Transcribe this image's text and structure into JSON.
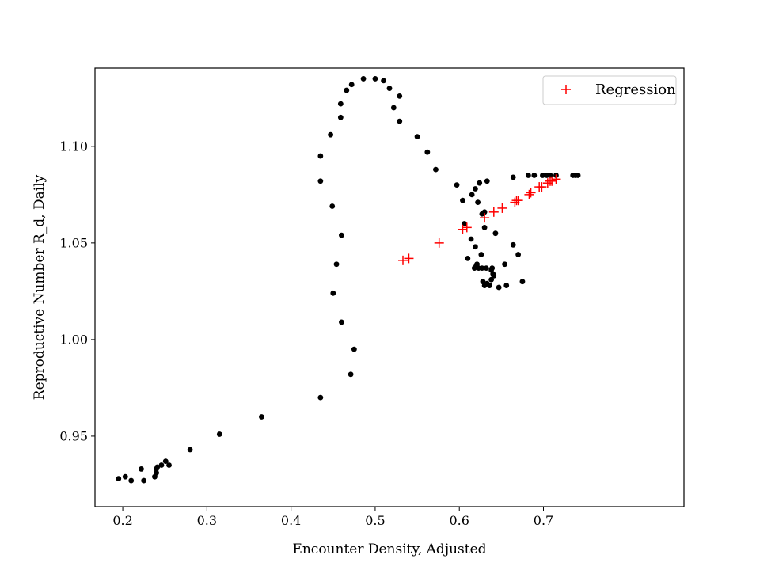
{
  "chart_data": {
    "type": "scatter",
    "title": "",
    "xlabel": "Encounter Density, Adjusted",
    "ylabel": "Reproductive Number R_d, Daily",
    "xlim": [
      0.167,
      0.867
    ],
    "ylim": [
      0.9135,
      1.1405
    ],
    "xticks": [
      0.2,
      0.3,
      0.4,
      0.5,
      0.6,
      0.7
    ],
    "xtick_labels": [
      "0.2",
      "0.3",
      "0.4",
      "0.5",
      "0.6",
      "0.7"
    ],
    "yticks": [
      0.95,
      1.0,
      1.05,
      1.1
    ],
    "ytick_labels": [
      "0.95",
      "1.00",
      "1.05",
      "1.10"
    ],
    "grid": false,
    "legend_position": "top-right",
    "series": [
      {
        "name": "",
        "marker": "dot",
        "color": "#000000",
        "points": [
          [
            0.195,
            0.928
          ],
          [
            0.203,
            0.929
          ],
          [
            0.21,
            0.927
          ],
          [
            0.222,
            0.933
          ],
          [
            0.225,
            0.927
          ],
          [
            0.238,
            0.929
          ],
          [
            0.24,
            0.931
          ],
          [
            0.24,
            0.933
          ],
          [
            0.241,
            0.934
          ],
          [
            0.246,
            0.935
          ],
          [
            0.251,
            0.937
          ],
          [
            0.255,
            0.935
          ],
          [
            0.28,
            0.943
          ],
          [
            0.315,
            0.951
          ],
          [
            0.365,
            0.96
          ],
          [
            0.435,
            0.97
          ],
          [
            0.471,
            0.982
          ],
          [
            0.475,
            0.995
          ],
          [
            0.46,
            1.009
          ],
          [
            0.45,
            1.024
          ],
          [
            0.454,
            1.039
          ],
          [
            0.46,
            1.054
          ],
          [
            0.449,
            1.069
          ],
          [
            0.435,
            1.082
          ],
          [
            0.435,
            1.095
          ],
          [
            0.447,
            1.106
          ],
          [
            0.459,
            1.115
          ],
          [
            0.459,
            1.122
          ],
          [
            0.466,
            1.129
          ],
          [
            0.472,
            1.132
          ],
          [
            0.486,
            1.135
          ],
          [
            0.5,
            1.135
          ],
          [
            0.51,
            1.134
          ],
          [
            0.517,
            1.13
          ],
          [
            0.529,
            1.126
          ],
          [
            0.522,
            1.12
          ],
          [
            0.529,
            1.113
          ],
          [
            0.55,
            1.105
          ],
          [
            0.562,
            1.097
          ],
          [
            0.572,
            1.088
          ],
          [
            0.597,
            1.08
          ],
          [
            0.604,
            1.072
          ],
          [
            0.606,
            1.06
          ],
          [
            0.61,
            1.042
          ],
          [
            0.614,
            1.052
          ],
          [
            0.615,
            1.075
          ],
          [
            0.619,
            1.078
          ],
          [
            0.619,
            1.048
          ],
          [
            0.622,
            1.071
          ],
          [
            0.624,
            1.081
          ],
          [
            0.626,
            1.044
          ],
          [
            0.627,
            1.065
          ],
          [
            0.63,
            1.066
          ],
          [
            0.63,
            1.058
          ],
          [
            0.633,
            1.082
          ],
          [
            0.618,
            1.037
          ],
          [
            0.62,
            1.038
          ],
          [
            0.621,
            1.039
          ],
          [
            0.623,
            1.037
          ],
          [
            0.627,
            1.037
          ],
          [
            0.632,
            1.037
          ],
          [
            0.638,
            1.036
          ],
          [
            0.639,
            1.037
          ],
          [
            0.64,
            1.034
          ],
          [
            0.641,
            1.033
          ],
          [
            0.628,
            1.03
          ],
          [
            0.63,
            1.028
          ],
          [
            0.633,
            1.029
          ],
          [
            0.636,
            1.028
          ],
          [
            0.638,
            1.031
          ],
          [
            0.643,
            1.055
          ],
          [
            0.647,
            1.027
          ],
          [
            0.654,
            1.039
          ],
          [
            0.656,
            1.028
          ],
          [
            0.664,
            1.049
          ],
          [
            0.664,
            1.084
          ],
          [
            0.67,
            1.044
          ],
          [
            0.675,
            1.03
          ],
          [
            0.682,
            1.085
          ],
          [
            0.689,
            1.085
          ],
          [
            0.699,
            1.085
          ],
          [
            0.704,
            1.085
          ],
          [
            0.708,
            1.085
          ],
          [
            0.715,
            1.085
          ],
          [
            0.735,
            1.085
          ],
          [
            0.738,
            1.085
          ],
          [
            0.741,
            1.085
          ]
        ]
      },
      {
        "name": "Regression",
        "marker": "plus",
        "color": "#ff0000",
        "points": [
          [
            0.533,
            1.041
          ],
          [
            0.54,
            1.042
          ],
          [
            0.576,
            1.05
          ],
          [
            0.604,
            1.057
          ],
          [
            0.609,
            1.058
          ],
          [
            0.63,
            1.063
          ],
          [
            0.641,
            1.066
          ],
          [
            0.651,
            1.068
          ],
          [
            0.666,
            1.071
          ],
          [
            0.668,
            1.072
          ],
          [
            0.67,
            1.072
          ],
          [
            0.683,
            1.075
          ],
          [
            0.685,
            1.076
          ],
          [
            0.695,
            1.079
          ],
          [
            0.698,
            1.079
          ],
          [
            0.705,
            1.081
          ],
          [
            0.708,
            1.082
          ],
          [
            0.71,
            1.082
          ],
          [
            0.715,
            1.083
          ]
        ]
      }
    ]
  }
}
